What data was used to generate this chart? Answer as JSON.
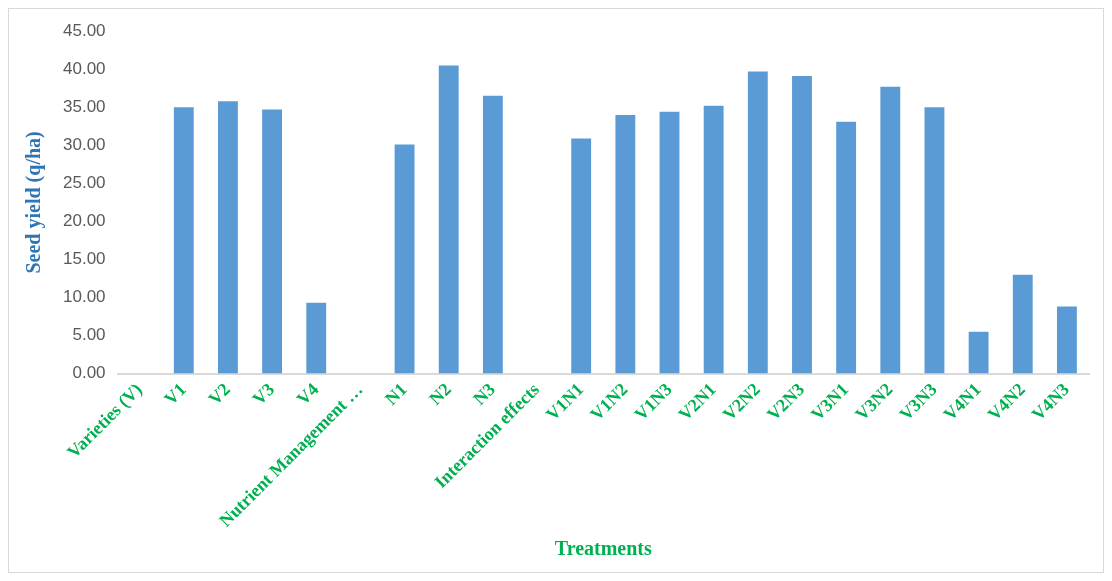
{
  "chart_data": {
    "type": "bar",
    "xlabel": "Treatments",
    "ylabel": "Seed yield (q/ha)",
    "categories": [
      "Varieties (V)",
      "V1",
      "V2",
      "V3",
      "V4",
      "Nutrient Management …",
      "N1",
      "N2",
      "N3",
      "Interaction effects",
      "V1N1",
      "V1N2",
      "V1N3",
      "V2N1",
      "V2N2",
      "V2N3",
      "V3N1",
      "V3N2",
      "V3N3",
      "V4N1",
      "V4N2",
      "V4N3"
    ],
    "values": [
      null,
      35.0,
      35.8,
      34.7,
      9.3,
      null,
      30.1,
      40.5,
      36.5,
      null,
      30.9,
      34.0,
      34.4,
      35.2,
      39.7,
      39.1,
      33.1,
      37.7,
      35.0,
      5.5,
      13.0,
      8.8
    ],
    "color": "#5b9bd5",
    "ylim": [
      0,
      45
    ],
    "yticks": [
      {
        "value": 0,
        "label": "0.00"
      },
      {
        "value": 5,
        "label": "5.00"
      },
      {
        "value": 10,
        "label": "10.00"
      },
      {
        "value": 15,
        "label": "15.00"
      },
      {
        "value": 20,
        "label": "20.00"
      },
      {
        "value": 25,
        "label": "25.00"
      },
      {
        "value": 30,
        "label": "30.00"
      },
      {
        "value": 35,
        "label": "35.00"
      },
      {
        "value": 40,
        "label": "40.00"
      },
      {
        "value": 45,
        "label": "45.00"
      }
    ],
    "grid": false,
    "legend": false
  }
}
